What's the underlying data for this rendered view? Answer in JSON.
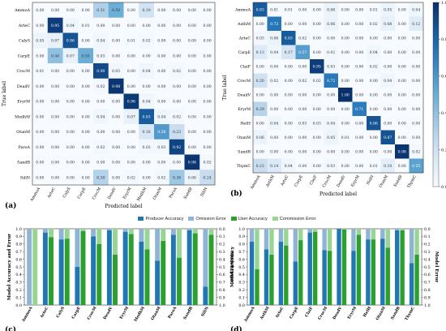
{
  "colors": {
    "producer": "#1f77b4",
    "omission": "#8fb4d6",
    "user": "#2ca02c",
    "commission": "#98d494",
    "cm_low": "#f7fbff",
    "cm_high": "#08306b"
  },
  "legend": [
    {
      "label": "Producer Accuracy",
      "color": "#1f77b4"
    },
    {
      "label": "Omission Error",
      "color": "#8fb4d6"
    },
    {
      "label": "User Accuracy",
      "color": "#2ca02c"
    },
    {
      "label": "Commission Error",
      "color": "#98d494"
    }
  ],
  "chart_data": [
    {
      "type": "heatmap",
      "panel_label": "(a)",
      "xlabel": "Predicted label",
      "ylabel": "True label",
      "labels": [
        "AmmoA",
        "ArteC",
        "CalyS",
        "CarpE",
        "CrocM",
        "DeadV",
        "EryrM",
        "MedhM",
        "OtanM",
        "ParoA",
        "SandB",
        "SiliN"
      ],
      "matrix": [
        [
          0.0,
          0.0,
          0.0,
          0.0,
          0.31,
          0.5,
          0.0,
          0.19,
          0.0,
          0.0,
          0.0,
          0.0
        ],
        [
          0.0,
          0.95,
          0.04,
          0.01,
          0.0,
          0.0,
          0.0,
          0.0,
          0.0,
          0.0,
          0.0,
          0.0
        ],
        [
          0.05,
          0.07,
          0.86,
          0.0,
          0.04,
          0.0,
          0.01,
          0.02,
          0.0,
          0.0,
          0.0,
          0.0
        ],
        [
          0.0,
          0.4,
          0.07,
          0.5,
          0.03,
          0.0,
          0.0,
          0.0,
          0.0,
          0.0,
          0.0,
          0.0
        ],
        [
          0.01,
          0.0,
          0.0,
          0.0,
          0.9,
          0.03,
          0.0,
          0.04,
          0.0,
          0.02,
          0.0,
          0.0
        ],
        [
          0.0,
          0.0,
          0.0,
          0.0,
          0.02,
          0.98,
          0.0,
          0.0,
          0.0,
          0.0,
          0.0,
          0.0
        ],
        [
          0.0,
          0.0,
          0.0,
          0.0,
          0.0,
          0.0,
          0.96,
          0.04,
          0.0,
          0.0,
          0.0,
          0.0
        ],
        [
          0.0,
          0.0,
          0.0,
          0.0,
          0.04,
          0.0,
          0.07,
          0.83,
          0.04,
          0.02,
          0.0,
          0.0
        ],
        [
          0.0,
          0.0,
          0.0,
          0.0,
          0.0,
          0.0,
          0.0,
          0.16,
          0.58,
          0.23,
          0.0,
          0.0
        ],
        [
          0.0,
          0.0,
          0.0,
          0.0,
          0.02,
          0.0,
          0.0,
          0.03,
          0.03,
          0.92,
          0.0,
          0.0
        ],
        [
          0.0,
          0.0,
          0.0,
          0.0,
          0.0,
          0.0,
          0.0,
          0.0,
          0.0,
          0.0,
          0.98,
          0.02
        ],
        [
          0.0,
          0.0,
          0.0,
          0.0,
          0.3,
          0.0,
          0.02,
          0.0,
          0.02,
          0.36,
          0.06,
          0.24
        ]
      ]
    },
    {
      "type": "heatmap",
      "panel_label": "(b)",
      "xlabel": "Predicted label",
      "ylabel": "True label",
      "labels": [
        "AmmoA",
        "AsthM",
        "ArteC",
        "CarpE",
        "ClaiF",
        "CrocM",
        "DeadV",
        "EryrM",
        "HelH",
        "OtanM",
        "SandB",
        "ThymC"
      ],
      "matrix": [
        [
          0.83,
          0.01,
          0.01,
          0.0,
          0.0,
          0.06,
          0.0,
          0.0,
          0.01,
          0.05,
          0.0,
          0.04
        ],
        [
          0.0,
          0.73,
          0.0,
          0.0,
          0.0,
          0.06,
          0.0,
          0.0,
          0.02,
          0.08,
          0.0,
          0.12
        ],
        [
          0.03,
          0.06,
          0.83,
          0.02,
          0.0,
          0.0,
          0.0,
          0.0,
          0.0,
          0.0,
          0.0,
          0.0
        ],
        [
          0.13,
          0.04,
          0.17,
          0.57,
          0.0,
          0.02,
          0.0,
          0.0,
          0.04,
          0.0,
          0.0,
          0.0
        ],
        [
          0.0,
          0.0,
          0.0,
          0.0,
          0.95,
          0.03,
          0.0,
          0.0,
          0.02,
          0.0,
          0.0,
          0.0
        ],
        [
          0.2,
          0.02,
          0.0,
          0.02,
          0.02,
          0.72,
          0.0,
          0.0,
          0.0,
          0.04,
          0.0,
          0.0
        ],
        [
          0.0,
          0.0,
          0.0,
          0.0,
          0.0,
          0.0,
          1.0,
          0.0,
          0.0,
          0.0,
          0.0,
          0.0
        ],
        [
          0.29,
          0.0,
          0.0,
          0.0,
          0.0,
          0.0,
          0.0,
          0.71,
          0.0,
          0.0,
          0.0,
          0.0
        ],
        [
          0.0,
          0.04,
          0.0,
          0.03,
          0.03,
          0.04,
          0.0,
          0.0,
          0.86,
          0.0,
          0.0,
          0.0
        ],
        [
          0.06,
          0.0,
          0.0,
          0.0,
          0.0,
          0.05,
          0.01,
          0.0,
          0.0,
          0.87,
          0.0,
          0.0
        ],
        [
          0.0,
          0.0,
          0.0,
          0.0,
          0.0,
          0.0,
          0.0,
          0.0,
          0.0,
          0.0,
          0.98,
          0.02
        ],
        [
          0.23,
          0.14,
          0.04,
          0.0,
          0.0,
          0.03,
          0.0,
          0.0,
          0.01,
          0.1,
          0.0,
          0.55
        ]
      ]
    },
    {
      "type": "bar",
      "panel_label": "(c)",
      "ylabel_left": "Model Accuracy and Error",
      "ylabel_right": "Model Error",
      "categories": [
        "AmmoA",
        "ArteC",
        "CalyS",
        "CarpE",
        "CrocM",
        "DeadV",
        "EryrM",
        "MedhM",
        "OtanM",
        "ParoA",
        "SandB",
        "SiliN"
      ],
      "series": [
        {
          "name": "Producer Accuracy",
          "values": [
            0.0,
            0.95,
            0.86,
            0.5,
            0.9,
            0.98,
            0.96,
            0.83,
            0.58,
            0.92,
            0.98,
            0.24
          ]
        },
        {
          "name": "User Accuracy",
          "values": [
            0.0,
            0.89,
            0.87,
            0.97,
            0.8,
            0.66,
            0.93,
            0.73,
            0.84,
            0.62,
            0.94,
            0.92
          ]
        }
      ],
      "ylim": [
        0,
        1.0
      ],
      "yticks": [
        "0.0",
        "0.1",
        "0.2",
        "0.3",
        "0.4",
        "0.5",
        "0.6",
        "0.7",
        "0.8",
        "0.9",
        "1.0"
      ]
    },
    {
      "type": "bar",
      "panel_label": "(d)",
      "ylabel_left": "Model Accuracy",
      "ylabel_right": "Model Error",
      "categories": [
        "AmmoA",
        "AsthM",
        "ArteC",
        "CarpE",
        "ClaiF",
        "CrocM",
        "DeadV",
        "EryrM",
        "HelH",
        "OtanM",
        "SandB",
        "ThymC"
      ],
      "series": [
        {
          "name": "Producer Accuracy",
          "values": [
            0.83,
            0.73,
            0.83,
            0.57,
            0.95,
            0.72,
            1.0,
            0.71,
            0.86,
            0.87,
            0.98,
            0.55
          ]
        },
        {
          "name": "User Accuracy",
          "values": [
            0.47,
            0.66,
            0.78,
            0.85,
            0.96,
            0.71,
            0.99,
            0.92,
            0.86,
            0.75,
            0.98,
            0.66
          ]
        }
      ],
      "ylim": [
        0,
        1.0
      ],
      "yticks": [
        "0.0",
        "0.1",
        "0.2",
        "0.3",
        "0.4",
        "0.5",
        "0.6",
        "0.7",
        "0.8",
        "0.9",
        "1.0"
      ]
    }
  ],
  "colorbar": {
    "ticks": [
      "0.0",
      "0.2",
      "0.4",
      "0.6",
      "0.8",
      "1.0"
    ]
  }
}
